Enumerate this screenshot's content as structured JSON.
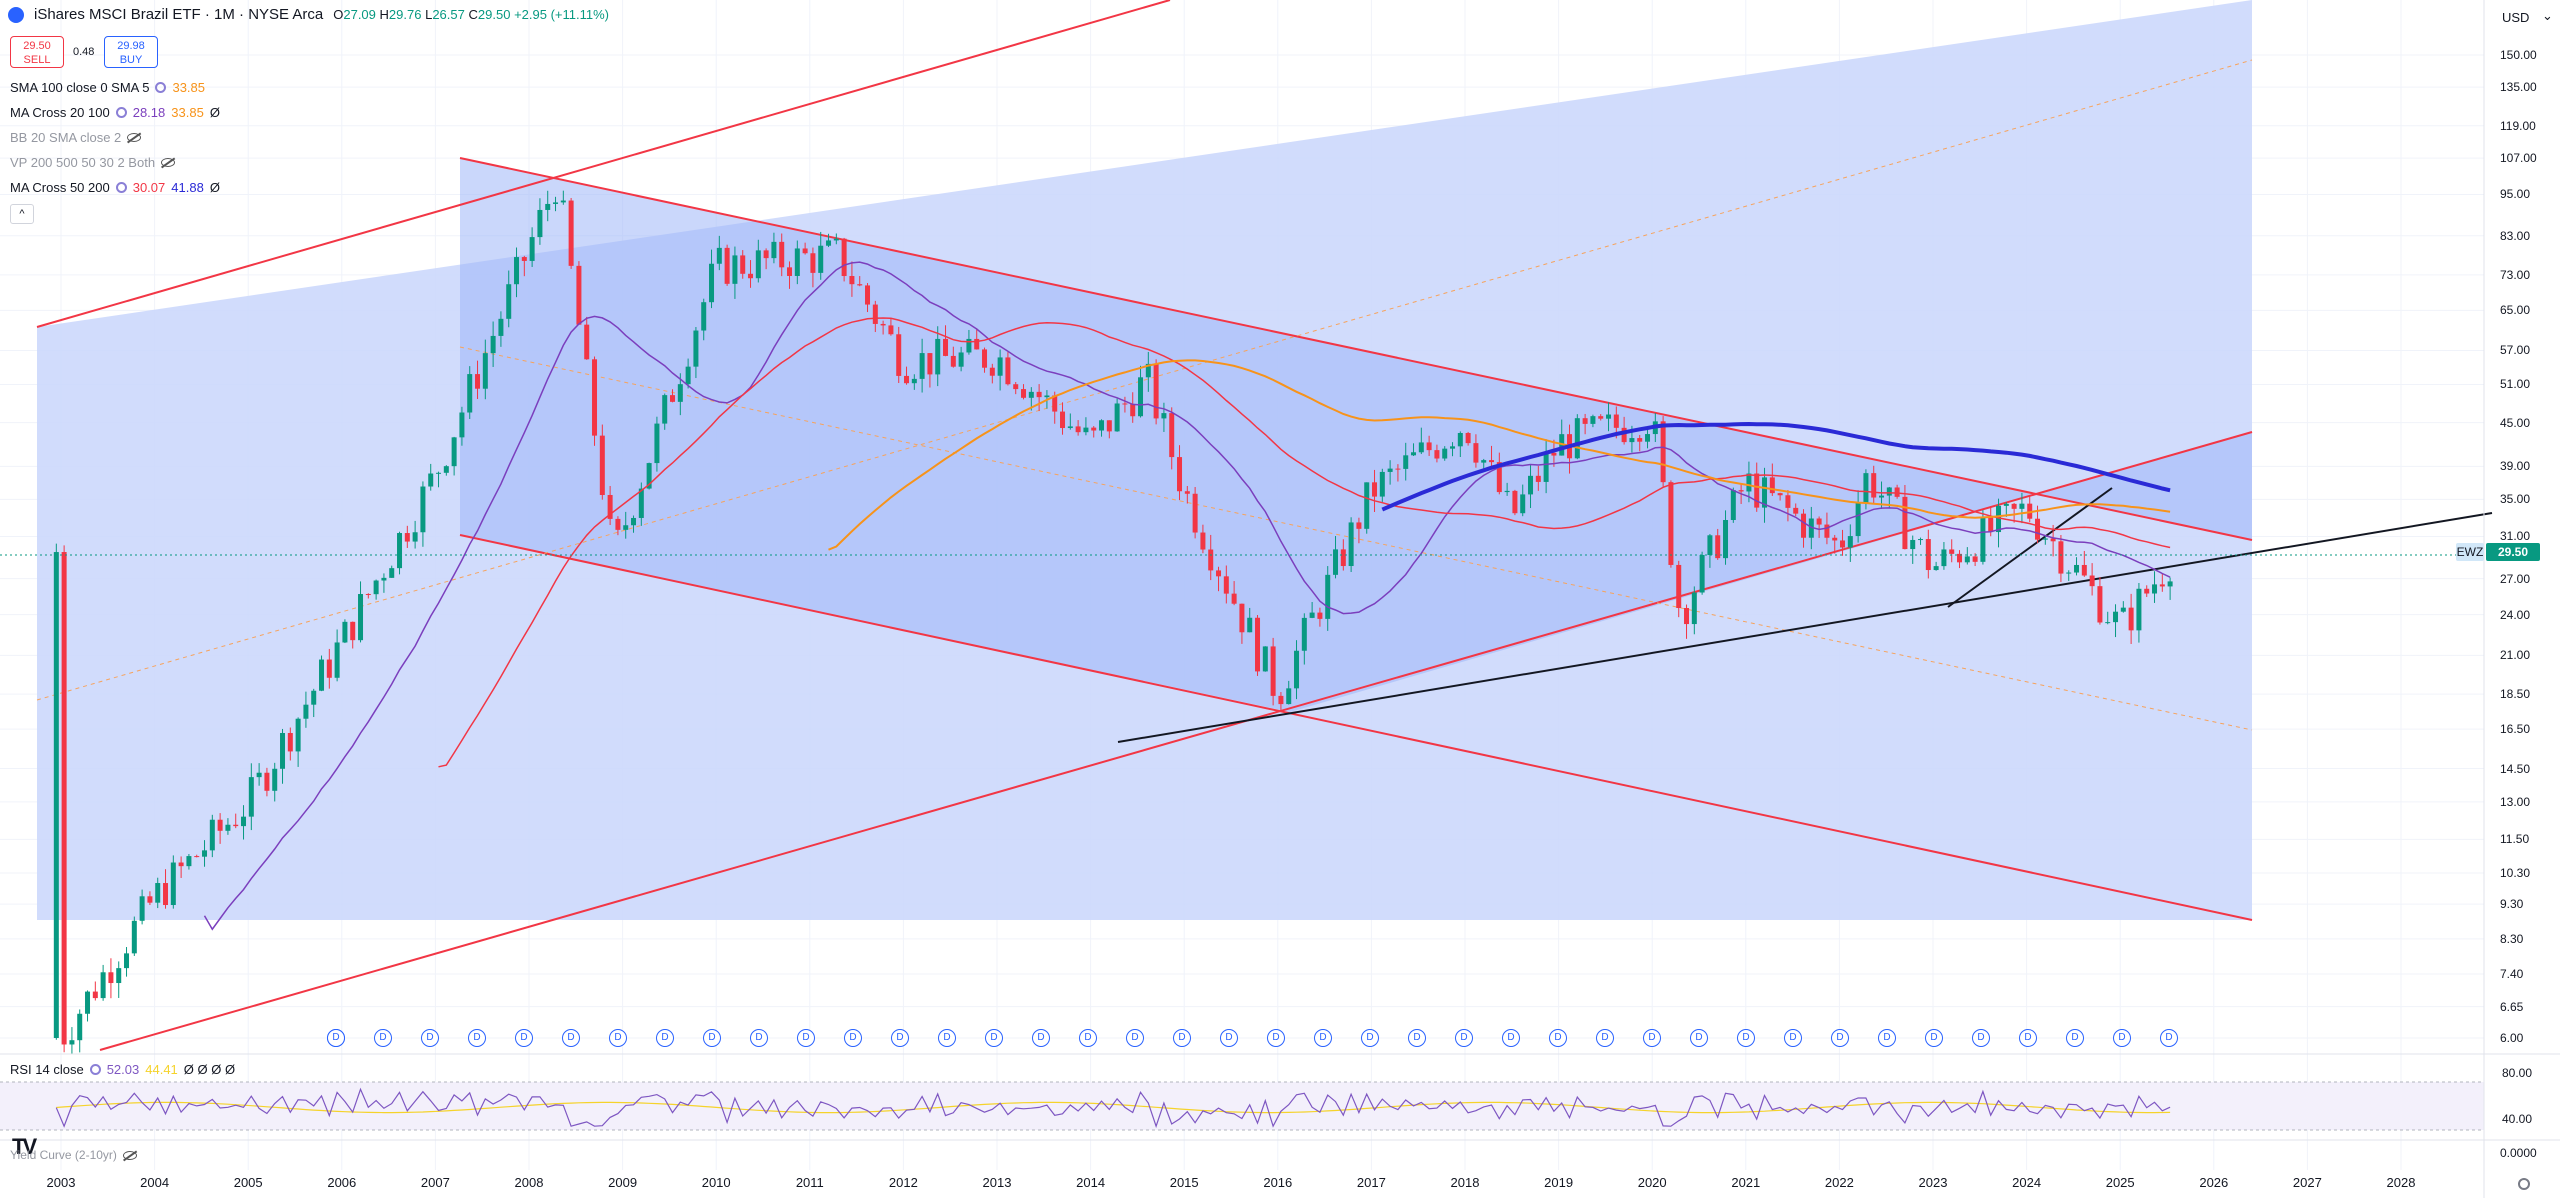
{
  "header": {
    "title": "iShares MSCI Brazil ETF · 1M · NYSE Arca",
    "ohlc": [
      {
        "label": "O",
        "value": "27.09"
      },
      {
        "label": "H",
        "value": "29.76"
      },
      {
        "label": "L",
        "value": "26.57"
      },
      {
        "label": "C",
        "value": "29.50"
      }
    ],
    "change": "+2.95 (+11.11%)"
  },
  "trade": {
    "sell_price": "29.50",
    "sell_label": "SELL",
    "buy_price": "29.98",
    "buy_label": "BUY",
    "spread": "0.48"
  },
  "indicators": [
    {
      "name": "SMA 100 close 0 SMA 5",
      "v1": "33.85",
      "v1_color": "#f7931a",
      "v2": "",
      "v2_color": "",
      "suffix": "",
      "hidden": false
    },
    {
      "name": "MA Cross 20 100",
      "v1": "28.18",
      "v1_color": "#7b3fbd",
      "v2": "33.85",
      "v2_color": "#f7931a",
      "suffix": "Ø",
      "hidden": false
    },
    {
      "name": "BB 20 SMA close 2",
      "v1": "",
      "v1_color": "",
      "v2": "",
      "v2_color": "",
      "suffix": "",
      "hidden": true
    },
    {
      "name": "VP 200 500 50 30 2 Both",
      "v1": "",
      "v1_color": "",
      "v2": "",
      "v2_color": "",
      "suffix": "",
      "hidden": true
    },
    {
      "name": "MA Cross 50 200",
      "v1": "30.07",
      "v1_color": "#f23645",
      "v2": "41.88",
      "v2_color": "#2a2ad6",
      "suffix": "Ø",
      "hidden": false
    }
  ],
  "collapse_glyph": "^",
  "currency": "USD",
  "currency_caret": "⌄",
  "price_ticks": [
    "150.00",
    "135.00",
    "119.00",
    "107.00",
    "95.00",
    "83.00",
    "73.00",
    "65.00",
    "57.00",
    "51.00",
    "45.00",
    "39.00",
    "35.00",
    "31.00",
    "27.00",
    "24.00",
    "21.00",
    "18.50",
    "16.50",
    "14.50",
    "13.00",
    "11.50",
    "10.30",
    "9.30",
    "8.30",
    "7.40",
    "6.65",
    "6.00"
  ],
  "symbol_tag": "EWZ",
  "last_price": "29.50",
  "rsi": {
    "name": "RSI 14 close",
    "v1": "52.03",
    "v2": "44.41",
    "extra": "Ø Ø Ø Ø",
    "ticks": [
      "80.00",
      "40.00"
    ]
  },
  "yield_curve": {
    "name": "Yield Curve (2-10yr)",
    "tick": "0.0000"
  },
  "years": [
    "2003",
    "2004",
    "2005",
    "2006",
    "2007",
    "2008",
    "2009",
    "2010",
    "2011",
    "2012",
    "2013",
    "2014",
    "2015",
    "2016",
    "2017",
    "2018",
    "2019",
    "2020",
    "2021",
    "2022",
    "2023",
    "2024",
    "2025",
    "2026",
    "2027",
    "2028"
  ],
  "dividend_marker": "D",
  "logo": "TV",
  "colors": {
    "up": "#089981",
    "down": "#f23645",
    "channel": "#f23645",
    "channel_fill": "#c9d6fb",
    "inner_fill": "#9fb6f7",
    "sma100": "#f7931a",
    "ma50": "#f23645",
    "ma200": "#2a2ad6",
    "ma20": "#7b3fbd",
    "rsi": "#7e57c2",
    "rsi_ma": "#f5d32b"
  },
  "chart_data": {
    "type": "candlestick",
    "timeframe": "1M",
    "y_scale": "log",
    "last_bar": {
      "open": 27.09,
      "high": 29.76,
      "low": 26.57,
      "close": 29.5
    },
    "key_prices": [
      {
        "year": 2003.0,
        "close": 6.0
      },
      {
        "year": 2004.0,
        "close": 9.5
      },
      {
        "year": 2005.0,
        "close": 13.0
      },
      {
        "year": 2006.0,
        "close": 22.0
      },
      {
        "year": 2007.0,
        "close": 38.0
      },
      {
        "year": 2008.3,
        "close": 100.0
      },
      {
        "year": 2008.9,
        "close": 29.0
      },
      {
        "year": 2010.0,
        "close": 75.0
      },
      {
        "year": 2011.3,
        "close": 78.0
      },
      {
        "year": 2012.0,
        "close": 55.0
      },
      {
        "year": 2013.0,
        "close": 56.0
      },
      {
        "year": 2014.0,
        "close": 42.0
      },
      {
        "year": 2014.6,
        "close": 52.0
      },
      {
        "year": 2015.0,
        "close": 36.0
      },
      {
        "year": 2016.0,
        "close": 18.5
      },
      {
        "year": 2017.0,
        "close": 36.0
      },
      {
        "year": 2018.0,
        "close": 45.0
      },
      {
        "year": 2018.5,
        "close": 33.0
      },
      {
        "year": 2019.0,
        "close": 42.0
      },
      {
        "year": 2020.0,
        "close": 46.0
      },
      {
        "year": 2020.3,
        "close": 24.0
      },
      {
        "year": 2021.0,
        "close": 37.0
      },
      {
        "year": 2022.0,
        "close": 30.0
      },
      {
        "year": 2022.3,
        "close": 38.0
      },
      {
        "year": 2023.0,
        "close": 28.0
      },
      {
        "year": 2024.0,
        "close": 34.0
      },
      {
        "year": 2024.5,
        "close": 28.0
      },
      {
        "year": 2025.0,
        "close": 23.0
      },
      {
        "year": 2025.6,
        "close": 29.5
      }
    ],
    "rsi_range": [
      0,
      100
    ]
  }
}
